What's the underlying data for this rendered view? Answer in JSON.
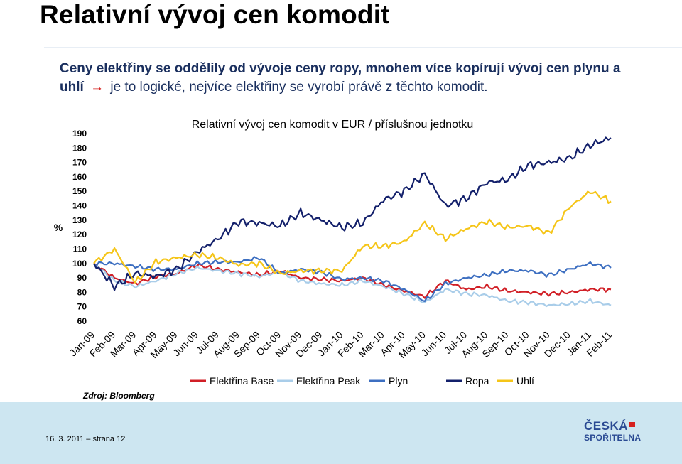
{
  "slide": {
    "title": "Relativní vývoj cen komodit",
    "intro_bold": "Ceny elektřiny se oddělily od vývoje ceny ropy, mnohem více kopírují vývoj cen plynu a uhlí",
    "intro_arrow": "→",
    "intro_plain": "je to logické, nejvíce elektřiny se vyrobí právě z těchto komodit.",
    "source": "Zdroj: Bloomberg",
    "footer": "16. 3. 2011 – strana 12",
    "logo_line1": "ČESKÁ",
    "logo_line2": "SPOŘITELNA"
  },
  "chart_data": {
    "type": "line",
    "title": "Relativní vývoj cen komodit v EUR / příslušnou jednotku",
    "ylabel": "%",
    "xlabel": "",
    "ylim": [
      60,
      190
    ],
    "yticks": [
      190,
      180,
      170,
      160,
      150,
      140,
      130,
      120,
      110,
      100,
      90,
      80,
      70,
      60
    ],
    "categories": [
      "Jan-09",
      "Feb-09",
      "Mar-09",
      "Apr-09",
      "May-09",
      "Jun-09",
      "Jul-09",
      "Aug-09",
      "Sep-09",
      "Oct-09",
      "Nov-09",
      "Dec-09",
      "Jan-10",
      "Feb-10",
      "Mar-10",
      "Apr-10",
      "May-10",
      "Jun-10",
      "Jul-10",
      "Aug-10",
      "Sep-10",
      "Oct-10",
      "Nov-10",
      "Dec-10",
      "Jan-11",
      "Feb-11"
    ],
    "grid": false,
    "legend_position": "bottom",
    "series": [
      {
        "name": "Elektřina Base",
        "color": "#d11f26",
        "values": [
          100,
          90,
          86,
          91,
          93,
          99,
          96,
          94,
          92,
          95,
          90,
          89,
          88,
          90,
          85,
          81,
          77,
          88,
          82,
          84,
          81,
          80,
          79,
          80,
          82,
          82
        ]
      },
      {
        "name": "Elektřina Peak",
        "color": "#a9cde9",
        "values": [
          100,
          88,
          84,
          88,
          93,
          97,
          95,
          93,
          91,
          94,
          88,
          86,
          85,
          88,
          84,
          79,
          73,
          82,
          79,
          78,
          74,
          73,
          71,
          72,
          74,
          71
        ]
      },
      {
        "name": "Plyn",
        "color": "#3d6fc1",
        "values": [
          100,
          100,
          98,
          96,
          96,
          100,
          101,
          101,
          104,
          93,
          96,
          94,
          89,
          90,
          88,
          82,
          74,
          86,
          90,
          92,
          95,
          95,
          92,
          96,
          100,
          97
        ]
      },
      {
        "name": "Ropa",
        "color": "#13206b",
        "values": [
          100,
          84,
          93,
          91,
          96,
          108,
          117,
          129,
          128,
          126,
          135,
          130,
          125,
          128,
          144,
          150,
          162,
          140,
          145,
          156,
          158,
          168,
          170,
          173,
          182,
          187
        ]
      },
      {
        "name": "Uhlí",
        "color": "#f5c518",
        "values": [
          100,
          110,
          87,
          101,
          104,
          106,
          104,
          99,
          100,
          93,
          95,
          95,
          95,
          112,
          112,
          115,
          128,
          117,
          124,
          129,
          125,
          126,
          121,
          139,
          150,
          143
        ]
      }
    ]
  }
}
